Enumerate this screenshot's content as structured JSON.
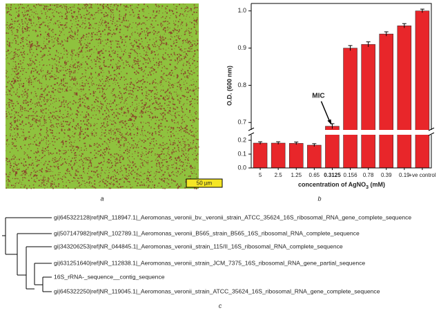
{
  "micrograph": {
    "scale_label": "50 µm"
  },
  "panel_labels": [
    "a",
    "b",
    "c"
  ],
  "chart_data": {
    "type": "bar",
    "y_label": "O.D. (600 nm)",
    "x_label": {
      "text": "concentration of AgNO",
      "sub": "3",
      "suffix": " (mM)"
    },
    "categories": [
      "5",
      "2.5",
      "1.25",
      "0.65",
      "0.3125",
      "0.156",
      "0.78",
      "0.39",
      "0.19",
      "+ve control"
    ],
    "values": [
      0.18,
      0.18,
      0.178,
      0.165,
      0.69,
      0.9,
      0.91,
      0.938,
      0.96,
      1.0
    ],
    "errors": [
      0.002,
      0.002,
      0.002,
      0.003,
      0.004,
      0.004,
      0.004,
      0.003,
      0.003,
      0.002
    ],
    "color": "#e8262a",
    "highlight_index": 4,
    "ylim": [
      0,
      1.02
    ],
    "y_break": [
      0.24,
      0.68
    ],
    "yticks": [
      {
        "value": 0,
        "label": "0.0"
      },
      0.1,
      0.2,
      0.7,
      0.8,
      0.9,
      {
        "value": 1,
        "label": "1.0"
      }
    ],
    "annotation": {
      "text": "MIC",
      "target": 4
    }
  },
  "tree": {
    "leaves": [
      "gi|645322128|ref|NR_118947.1|_Aeromonas_veronii_bv._veronii_strain_ATCC_35624_16S_ribosomal_RNA_gene_complete_sequence",
      "gi|507147982|ref|NR_102789.1|_Aeromonas_veronii_B565_strain_B565_16S_ribosomal_RNA_complete_sequence",
      "gi|343206253|ref|NR_044845.1|_Aeromonas_veronii_strain_115/II_16S_ribosomal_RNA_complete_sequence",
      "gi|631251640|ref|NR_112838.1|_Aeromonas_veronii_strain_JCM_7375_16S_ribosomal_RNA_gene_partial_sequence",
      "16S_rRNA-_sequence__contig_sequence",
      "gi|645322250|ref|NR_119045.1|_Aeromonas_veronii_strain_ATCC_35624_16S_ribosomal_RNA_gene_complete_sequence"
    ]
  }
}
